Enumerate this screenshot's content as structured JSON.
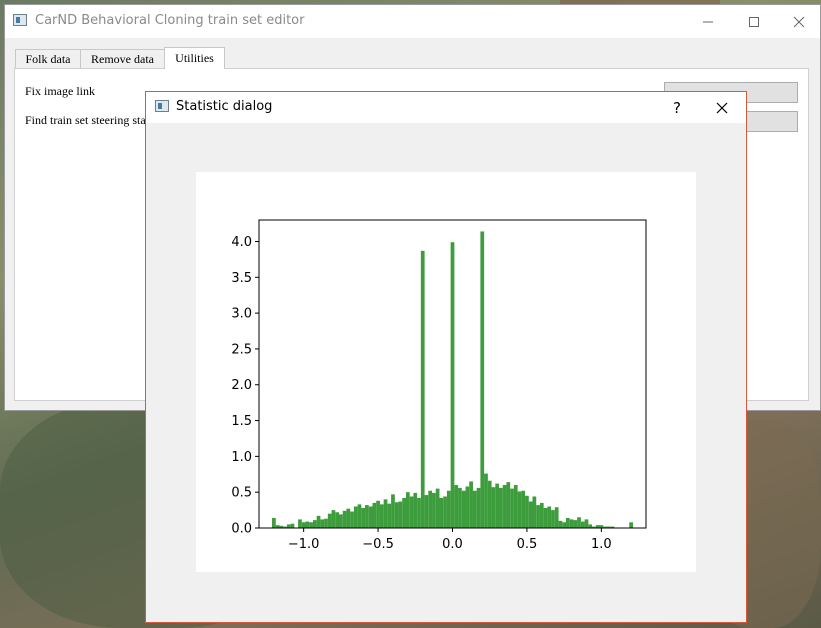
{
  "main_window": {
    "title": "CarND Behavioral Cloning train set editor",
    "tabs": [
      {
        "label": "Folk data"
      },
      {
        "label": "Remove data"
      },
      {
        "label": "Utilities"
      }
    ],
    "active_tab": "Utilities",
    "utilities": {
      "fix_image_link_label": "Fix image link",
      "find_stats_label": "Find train set steering statis"
    }
  },
  "dialog": {
    "title": "Statistic dialog",
    "help_glyph": "?",
    "close_glyph": "✕"
  },
  "colors": {
    "bar": "#3d9d3d",
    "dialog_border": "#d5593c"
  },
  "chart_data": {
    "type": "bar",
    "title": "",
    "xlabel": "",
    "ylabel": "",
    "xlim": [
      -1.3,
      1.3
    ],
    "ylim": [
      0,
      4.3
    ],
    "xticks": [
      -1.0,
      -0.5,
      0.0,
      0.5,
      1.0
    ],
    "xtick_labels": [
      "−1.0",
      "−0.5",
      "0.0",
      "0.5",
      "1.0"
    ],
    "yticks": [
      0.0,
      0.5,
      1.0,
      1.5,
      2.0,
      2.5,
      3.0,
      3.5,
      4.0
    ],
    "ytick_labels": [
      "0.0",
      "0.5",
      "1.0",
      "1.5",
      "2.0",
      "2.5",
      "3.0",
      "3.5",
      "4.0"
    ],
    "bin_width": 0.025,
    "bins": [
      {
        "x": -1.2,
        "y": 0.14
      },
      {
        "x": -1.175,
        "y": 0.04
      },
      {
        "x": -1.15,
        "y": 0.03
      },
      {
        "x": -1.125,
        "y": 0.02
      },
      {
        "x": -1.1,
        "y": 0.05
      },
      {
        "x": -1.075,
        "y": 0.06
      },
      {
        "x": -1.05,
        "y": 0.0
      },
      {
        "x": -1.025,
        "y": 0.12
      },
      {
        "x": -1.0,
        "y": 0.08
      },
      {
        "x": -0.975,
        "y": 0.09
      },
      {
        "x": -0.95,
        "y": 0.08
      },
      {
        "x": -0.925,
        "y": 0.11
      },
      {
        "x": -0.9,
        "y": 0.17
      },
      {
        "x": -0.875,
        "y": 0.12
      },
      {
        "x": -0.85,
        "y": 0.13
      },
      {
        "x": -0.825,
        "y": 0.2
      },
      {
        "x": -0.8,
        "y": 0.25
      },
      {
        "x": -0.775,
        "y": 0.22
      },
      {
        "x": -0.75,
        "y": 0.19
      },
      {
        "x": -0.725,
        "y": 0.24
      },
      {
        "x": -0.7,
        "y": 0.27
      },
      {
        "x": -0.675,
        "y": 0.23
      },
      {
        "x": -0.65,
        "y": 0.3
      },
      {
        "x": -0.625,
        "y": 0.33
      },
      {
        "x": -0.6,
        "y": 0.28
      },
      {
        "x": -0.575,
        "y": 0.32
      },
      {
        "x": -0.55,
        "y": 0.3
      },
      {
        "x": -0.525,
        "y": 0.35
      },
      {
        "x": -0.5,
        "y": 0.38
      },
      {
        "x": -0.475,
        "y": 0.33
      },
      {
        "x": -0.45,
        "y": 0.4
      },
      {
        "x": -0.425,
        "y": 0.34
      },
      {
        "x": -0.4,
        "y": 0.47
      },
      {
        "x": -0.375,
        "y": 0.36
      },
      {
        "x": -0.35,
        "y": 0.37
      },
      {
        "x": -0.325,
        "y": 0.42
      },
      {
        "x": -0.3,
        "y": 0.5
      },
      {
        "x": -0.275,
        "y": 0.44
      },
      {
        "x": -0.25,
        "y": 0.49
      },
      {
        "x": -0.225,
        "y": 0.42
      },
      {
        "x": -0.2,
        "y": 3.87
      },
      {
        "x": -0.175,
        "y": 0.46
      },
      {
        "x": -0.15,
        "y": 0.52
      },
      {
        "x": -0.125,
        "y": 0.49
      },
      {
        "x": -0.1,
        "y": 0.55
      },
      {
        "x": -0.075,
        "y": 0.42
      },
      {
        "x": -0.05,
        "y": 0.44
      },
      {
        "x": -0.025,
        "y": 0.52
      },
      {
        "x": 0.0,
        "y": 3.99
      },
      {
        "x": 0.025,
        "y": 0.6
      },
      {
        "x": 0.05,
        "y": 0.56
      },
      {
        "x": 0.075,
        "y": 0.52
      },
      {
        "x": 0.1,
        "y": 0.58
      },
      {
        "x": 0.125,
        "y": 0.65
      },
      {
        "x": 0.15,
        "y": 0.52
      },
      {
        "x": 0.175,
        "y": 0.56
      },
      {
        "x": 0.2,
        "y": 4.14
      },
      {
        "x": 0.225,
        "y": 0.76
      },
      {
        "x": 0.25,
        "y": 0.66
      },
      {
        "x": 0.275,
        "y": 0.57
      },
      {
        "x": 0.3,
        "y": 0.62
      },
      {
        "x": 0.325,
        "y": 0.56
      },
      {
        "x": 0.35,
        "y": 0.6
      },
      {
        "x": 0.375,
        "y": 0.64
      },
      {
        "x": 0.4,
        "y": 0.55
      },
      {
        "x": 0.425,
        "y": 0.6
      },
      {
        "x": 0.45,
        "y": 0.51
      },
      {
        "x": 0.475,
        "y": 0.52
      },
      {
        "x": 0.5,
        "y": 0.45
      },
      {
        "x": 0.525,
        "y": 0.37
      },
      {
        "x": 0.55,
        "y": 0.44
      },
      {
        "x": 0.575,
        "y": 0.32
      },
      {
        "x": 0.6,
        "y": 0.35
      },
      {
        "x": 0.625,
        "y": 0.28
      },
      {
        "x": 0.65,
        "y": 0.3
      },
      {
        "x": 0.675,
        "y": 0.25
      },
      {
        "x": 0.7,
        "y": 0.29
      },
      {
        "x": 0.725,
        "y": 0.1
      },
      {
        "x": 0.75,
        "y": 0.08
      },
      {
        "x": 0.775,
        "y": 0.14
      },
      {
        "x": 0.8,
        "y": 0.12
      },
      {
        "x": 0.825,
        "y": 0.11
      },
      {
        "x": 0.85,
        "y": 0.15
      },
      {
        "x": 0.875,
        "y": 0.09
      },
      {
        "x": 0.9,
        "y": 0.12
      },
      {
        "x": 0.925,
        "y": 0.05
      },
      {
        "x": 0.95,
        "y": 0.02
      },
      {
        "x": 0.975,
        "y": 0.04
      },
      {
        "x": 1.0,
        "y": 0.04
      },
      {
        "x": 1.025,
        "y": 0.02
      },
      {
        "x": 1.05,
        "y": 0.02
      },
      {
        "x": 1.075,
        "y": 0.02
      },
      {
        "x": 1.1,
        "y": 0.0
      },
      {
        "x": 1.125,
        "y": 0.0
      },
      {
        "x": 1.15,
        "y": 0.0
      },
      {
        "x": 1.175,
        "y": 0.0
      },
      {
        "x": 1.2,
        "y": 0.08
      }
    ]
  }
}
